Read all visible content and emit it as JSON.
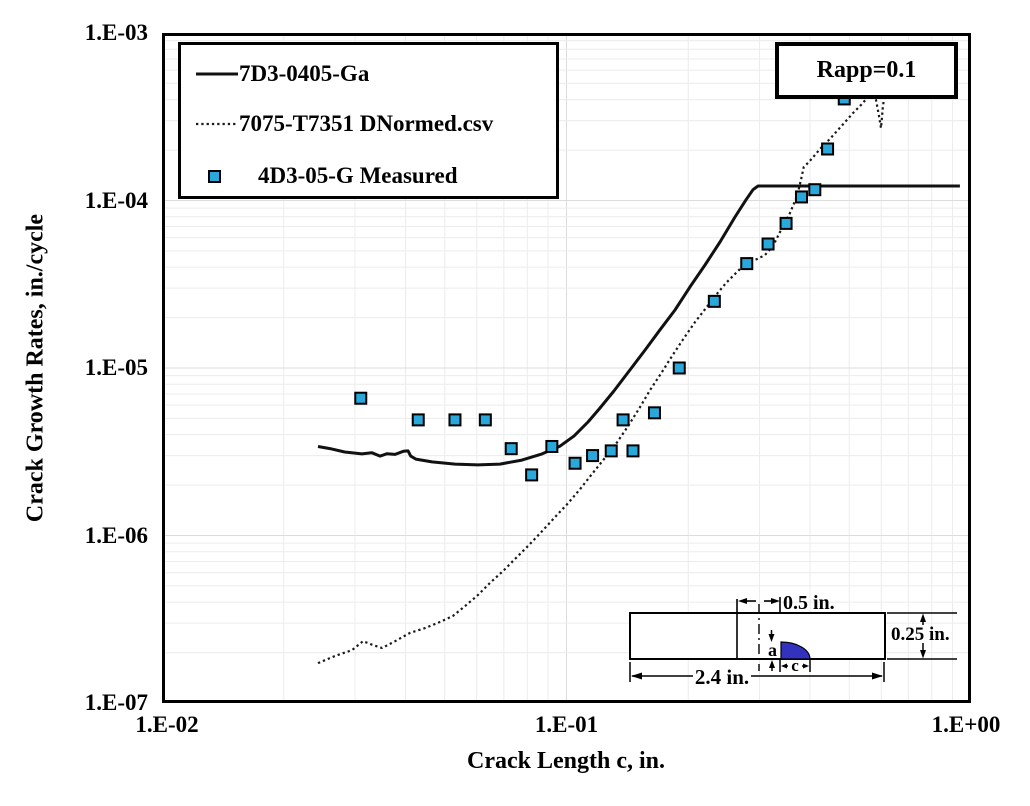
{
  "chart_data": {
    "type": "line",
    "title": "",
    "xlabel": "Crack Length c, in.",
    "ylabel": "Crack Growth Rates, in./cycle",
    "x_scale": "log",
    "y_scale": "log",
    "xlim": [
      0.01,
      1.0
    ],
    "ylim": [
      1e-07,
      0.001
    ],
    "grid": "minor+major, light gray",
    "legend_position": "top-left",
    "x_ticks": [
      {
        "value": 0.01,
        "label": "1.E-02"
      },
      {
        "value": 0.1,
        "label": "1.E-01"
      },
      {
        "value": 1.0,
        "label": "1.E+00"
      }
    ],
    "y_ticks": [
      {
        "value": 0.001,
        "label": "1.E-03"
      },
      {
        "value": 0.0001,
        "label": "1.E-04"
      },
      {
        "value": 1e-05,
        "label": "1.E-05"
      },
      {
        "value": 1e-06,
        "label": "1.E-06"
      },
      {
        "value": 1e-07,
        "label": "1.E-07"
      }
    ],
    "annotation": {
      "text": "Rapp=0.1"
    },
    "series": [
      {
        "name": "7D3-0405-Ga",
        "type": "line",
        "style": "solid",
        "color": "#111111",
        "points": [
          [
            0.0243,
            3.4e-06
          ],
          [
            0.026,
            3.3e-06
          ],
          [
            0.0283,
            3.15e-06
          ],
          [
            0.0312,
            3.07e-06
          ],
          [
            0.033,
            3.12e-06
          ],
          [
            0.0346,
            2.98e-06
          ],
          [
            0.036,
            3.08e-06
          ],
          [
            0.0377,
            3.05e-06
          ],
          [
            0.0395,
            3.18e-06
          ],
          [
            0.0406,
            3.2e-06
          ],
          [
            0.0412,
            2.98e-06
          ],
          [
            0.0424,
            2.86e-06
          ],
          [
            0.0465,
            2.75e-06
          ],
          [
            0.053,
            2.67e-06
          ],
          [
            0.0604,
            2.64e-06
          ],
          [
            0.0685,
            2.67e-06
          ],
          [
            0.0776,
            2.82e-06
          ],
          [
            0.087,
            3.07e-06
          ],
          [
            0.0964,
            3.42e-06
          ],
          [
            0.1044,
            3.93e-06
          ],
          [
            0.113,
            4.76e-06
          ],
          [
            0.121,
            5.77e-06
          ],
          [
            0.131,
            7.29e-06
          ],
          [
            0.1435,
            9.73e-06
          ],
          [
            0.1564,
            1.28e-05
          ],
          [
            0.1703,
            1.69e-05
          ],
          [
            0.1854,
            2.22e-05
          ],
          [
            0.202,
            3.05e-05
          ],
          [
            0.22,
            4.12e-05
          ],
          [
            0.2396,
            5.65e-05
          ],
          [
            0.261,
            7.97e-05
          ],
          [
            0.2778,
            0.000101
          ],
          [
            0.2891,
            0.000116
          ],
          [
            0.2974,
            0.000122
          ],
          [
            0.939,
            0.000122
          ]
        ]
      },
      {
        "name": "7075-T7351 DNormed.csv",
        "type": "line",
        "style": "dotted",
        "color": "#1a1a1a",
        "points": [
          [
            0.0243,
            1.73e-07
          ],
          [
            0.0268,
            1.91e-07
          ],
          [
            0.0295,
            2.07e-07
          ],
          [
            0.0314,
            2.34e-07
          ],
          [
            0.0332,
            2.22e-07
          ],
          [
            0.035,
            2.13e-07
          ],
          [
            0.0377,
            2.34e-07
          ],
          [
            0.041,
            2.62e-07
          ],
          [
            0.0447,
            2.8e-07
          ],
          [
            0.0487,
            3.05e-07
          ],
          [
            0.0524,
            3.31e-07
          ],
          [
            0.0561,
            3.79e-07
          ],
          [
            0.0604,
            4.41e-07
          ],
          [
            0.0647,
            5.21e-07
          ],
          [
            0.0697,
            6.14e-07
          ],
          [
            0.075,
            7.34e-07
          ],
          [
            0.0808,
            8.78e-07
          ],
          [
            0.087,
            1.06e-06
          ],
          [
            0.0937,
            1.29e-06
          ],
          [
            0.1009,
            1.56e-06
          ],
          [
            0.108,
            1.89e-06
          ],
          [
            0.1156,
            2.33e-06
          ],
          [
            0.1238,
            2.86e-06
          ],
          [
            0.1325,
            3.52e-06
          ],
          [
            0.142,
            4.5e-06
          ],
          [
            0.152,
            5.85e-06
          ],
          [
            0.1609,
            7.39e-06
          ],
          [
            0.1722,
            9.46e-06
          ],
          [
            0.1833,
            1.2e-05
          ],
          [
            0.1952,
            1.51e-05
          ],
          [
            0.2078,
            1.88e-05
          ],
          [
            0.2213,
            2.28e-05
          ],
          [
            0.2343,
            2.73e-05
          ],
          [
            0.248,
            3.22e-05
          ],
          [
            0.264,
            3.74e-05
          ],
          [
            0.2794,
            4.29e-05
          ],
          [
            0.2958,
            4.47e-05
          ],
          [
            0.3095,
            4.73e-05
          ],
          [
            0.324,
            5.35e-05
          ],
          [
            0.3391,
            6.67e-05
          ],
          [
            0.3569,
            8.42e-05
          ],
          [
            0.3715,
            0.000106
          ],
          [
            0.38,
            0.000133
          ],
          [
            0.3858,
            0.000158
          ],
          [
            0.3977,
            0.00017
          ],
          [
            0.4092,
            0.000184
          ],
          [
            0.4258,
            0.000206
          ],
          [
            0.4456,
            0.00023
          ],
          [
            0.4664,
            0.00026
          ],
          [
            0.4882,
            0.000294
          ],
          [
            0.511,
            0.000333
          ],
          [
            0.5348,
            0.000372
          ],
          [
            0.5565,
            0.000415
          ],
          [
            0.5692,
            0.000444
          ],
          [
            0.5823,
            0.000398
          ],
          [
            0.5923,
            0.00032
          ],
          [
            0.599,
            0.000271
          ],
          [
            0.606,
            0.000367
          ],
          [
            0.6128,
            0.000444
          ]
        ]
      },
      {
        "name": "4D3-05-G Measured",
        "type": "scatter",
        "marker": "square",
        "fill": "#29A8DC",
        "edge": "#000000",
        "points": [
          [
            0.031,
            6.6e-06
          ],
          [
            0.043,
            4.9e-06
          ],
          [
            0.053,
            4.9e-06
          ],
          [
            0.063,
            4.9e-06
          ],
          [
            0.073,
            3.3e-06
          ],
          [
            0.082,
            2.3e-06
          ],
          [
            0.092,
            3.4e-06
          ],
          [
            0.105,
            2.7e-06
          ],
          [
            0.116,
            3e-06
          ],
          [
            0.129,
            3.2e-06
          ],
          [
            0.138,
            4.9e-06
          ],
          [
            0.146,
            3.2e-06
          ],
          [
            0.165,
            5.4e-06
          ],
          [
            0.19,
            1e-05
          ],
          [
            0.232,
            2.5e-05
          ],
          [
            0.279,
            4.2e-05
          ],
          [
            0.315,
            5.5e-05
          ],
          [
            0.349,
            7.3e-05
          ],
          [
            0.381,
            0.000105
          ],
          [
            0.411,
            0.000116
          ],
          [
            0.442,
            0.000203
          ],
          [
            0.486,
            0.000404
          ]
        ]
      }
    ]
  },
  "inset": {
    "labels": {
      "notch_offset": "0.5 in.",
      "thickness": "0.25 in.",
      "length": "2.4 in.",
      "crack_depth": "a",
      "crack_half_width": "c"
    },
    "crack_color": "#3232BE"
  }
}
